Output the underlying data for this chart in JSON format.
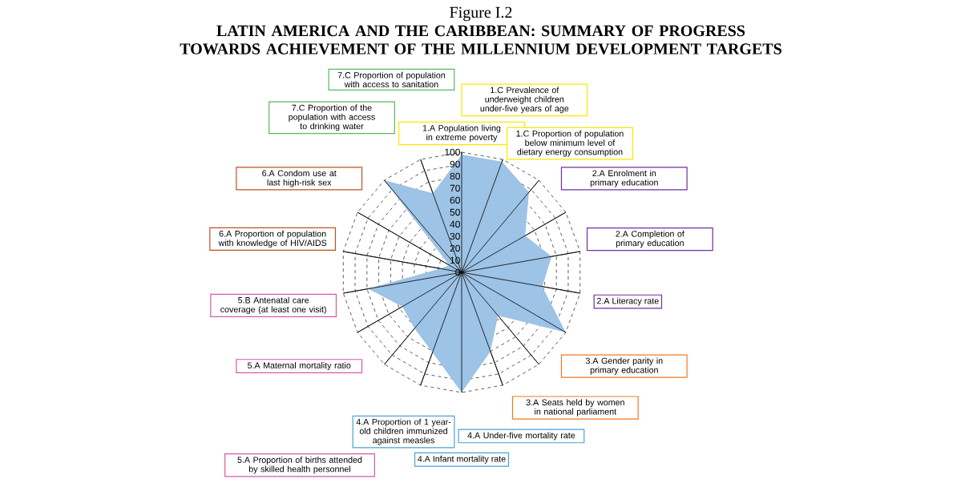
{
  "chart_data": {
    "type": "radar",
    "title": "Figure I.2",
    "subtitle": "LATIN AMERICA AND THE CARIBBEAN: SUMMARY OF PROGRESS TOWARDS ACHIEVEMENT OF THE MILLENNIUM DEVELOPMENT TARGETS",
    "categories": [
      "1.A Population living in extreme poverty",
      "1.C Prevalence of underweight children under-five years of age",
      "1.C Proportion of population below minimum level of dietary energy consumption",
      "2.A Enrolment in primary education",
      "2.A Completion of primary education",
      "2.A Literacy rate",
      "3.A Gender parity in primary education",
      "3.A Seats held by women in national parliament",
      "4.A Under-five mortality rate",
      "4.A Infant mortality rate",
      "4.A Proportion of 1 year-old children immunized against measles",
      "5.A Proportion of births attended by skilled health personnel",
      "5.A Maternal mortality ratio",
      "5.B Antenatal care coverage (at least one visit)",
      "6.A Proportion of population with knowledge of HIV/AIDS",
      "6.A Condom use at last high-risk sex",
      "7.C Proportion of the population with access to drinking water",
      "7.C Proportion of population with access to sanitation"
    ],
    "series": [
      {
        "color": "#9dc3e6",
        "values": [
          98,
          98,
          87,
          61,
          76,
          68,
          100,
          47,
          70,
          100,
          71,
          61,
          57,
          79,
          18,
          12,
          100,
          70
        ]
      }
    ],
    "ylim": [
      0,
      100
    ],
    "yticks": [
      0,
      10,
      20,
      30,
      40,
      50,
      60,
      70,
      80,
      90,
      100
    ],
    "grid": true
  }
}
